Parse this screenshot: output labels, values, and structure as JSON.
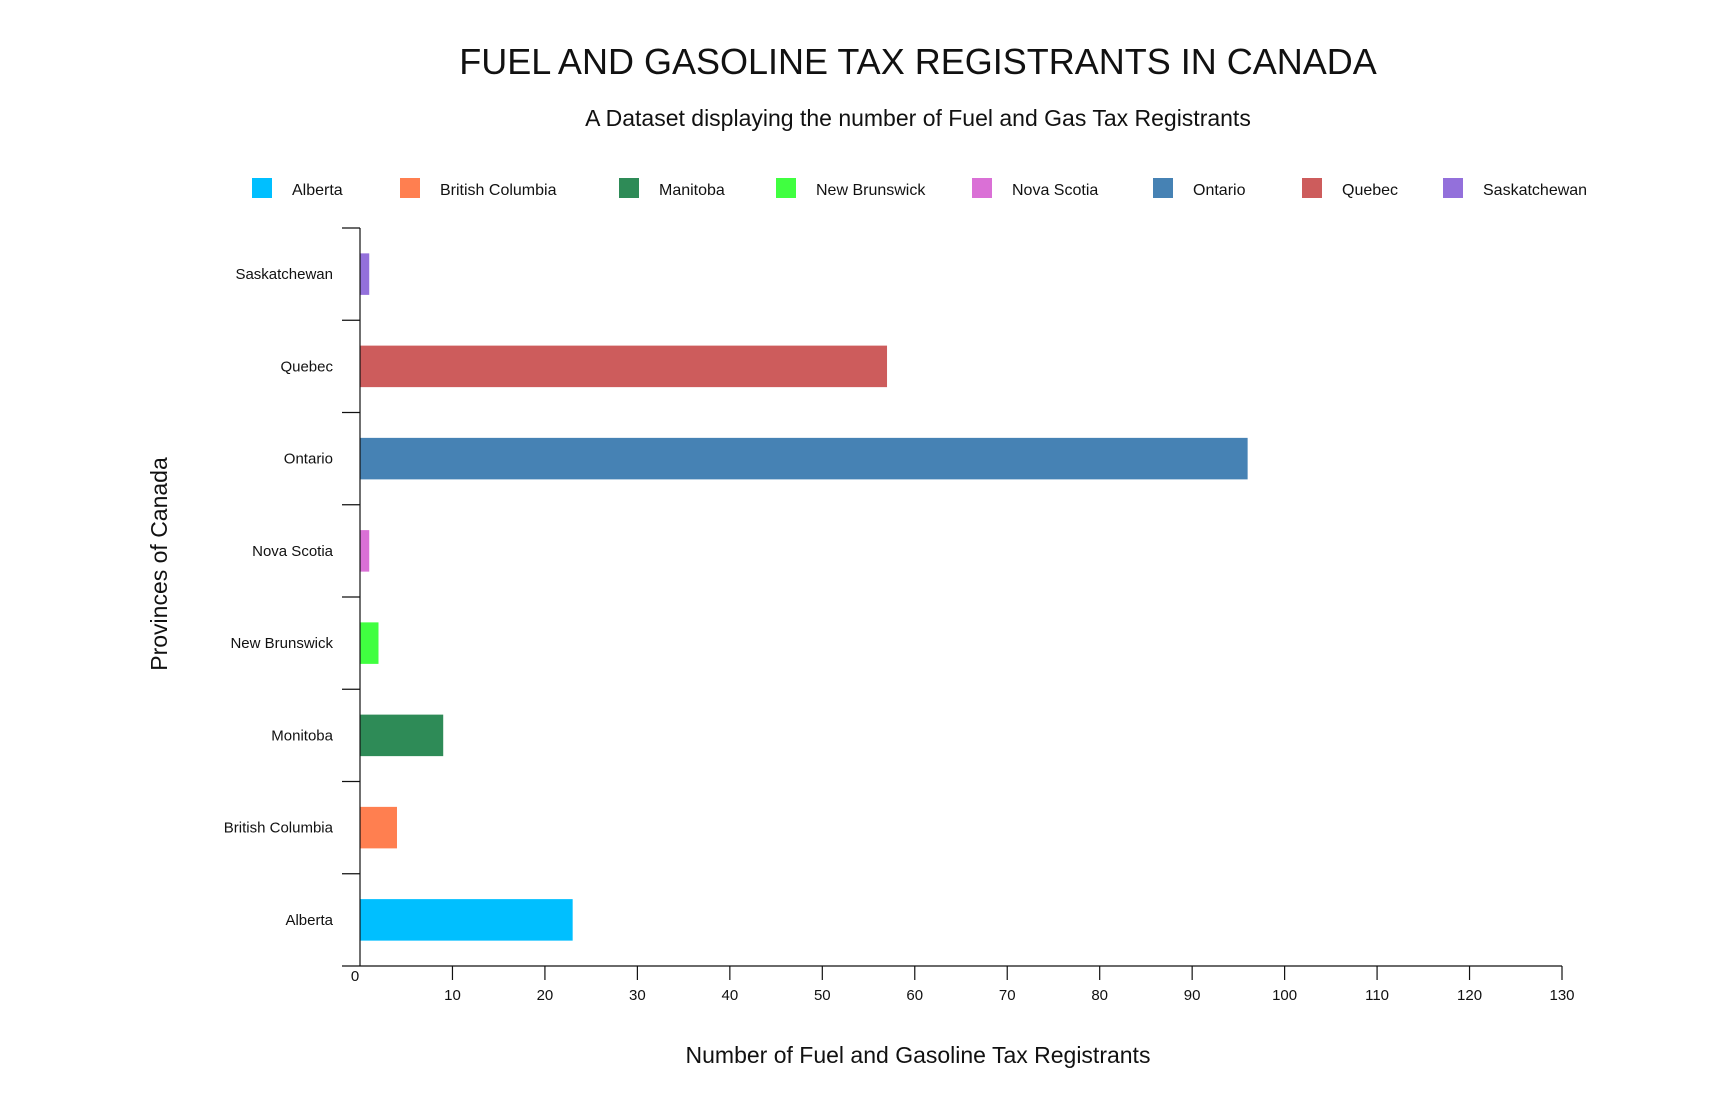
{
  "chart_data": {
    "type": "bar",
    "orientation": "horizontal",
    "title": "FUEL AND GASOLINE TAX REGISTRANTS IN CANADA",
    "subtitle": "A Dataset displaying the number of Fuel and Gas Tax Registrants",
    "xlabel": "Number of Fuel and Gasoline Tax Registrants",
    "ylabel": "Provinces of Canada",
    "xlim": [
      0,
      130
    ],
    "x_ticks": [
      0,
      10,
      20,
      30,
      40,
      50,
      60,
      70,
      80,
      90,
      100,
      110,
      120,
      130
    ],
    "categories": [
      "Alberta",
      "British Columbia",
      "Monitoba",
      "New Brunswick",
      "Nova Scotia",
      "Ontario",
      "Quebec",
      "Saskatchewan"
    ],
    "values": [
      23,
      4,
      9,
      2,
      1,
      96,
      57,
      1
    ],
    "colors": [
      "#00bfff",
      "#ff7f50",
      "#2e8b57",
      "#40ff40",
      "#da70d6",
      "#4682b4",
      "#cd5c5c",
      "#9370db"
    ],
    "legend": {
      "position": "top",
      "entries": [
        {
          "label": "Alberta",
          "color": "#00bfff"
        },
        {
          "label": "British Columbia",
          "color": "#ff7f50"
        },
        {
          "label": "Manitoba",
          "color": "#2e8b57"
        },
        {
          "label": "New Brunswick",
          "color": "#40ff40"
        },
        {
          "label": "Nova Scotia",
          "color": "#da70d6"
        },
        {
          "label": "Ontario",
          "color": "#4682b4"
        },
        {
          "label": "Quebec",
          "color": "#cd5c5c"
        },
        {
          "label": "Saskatchewan",
          "color": "#9370db"
        }
      ]
    },
    "grid": false
  }
}
